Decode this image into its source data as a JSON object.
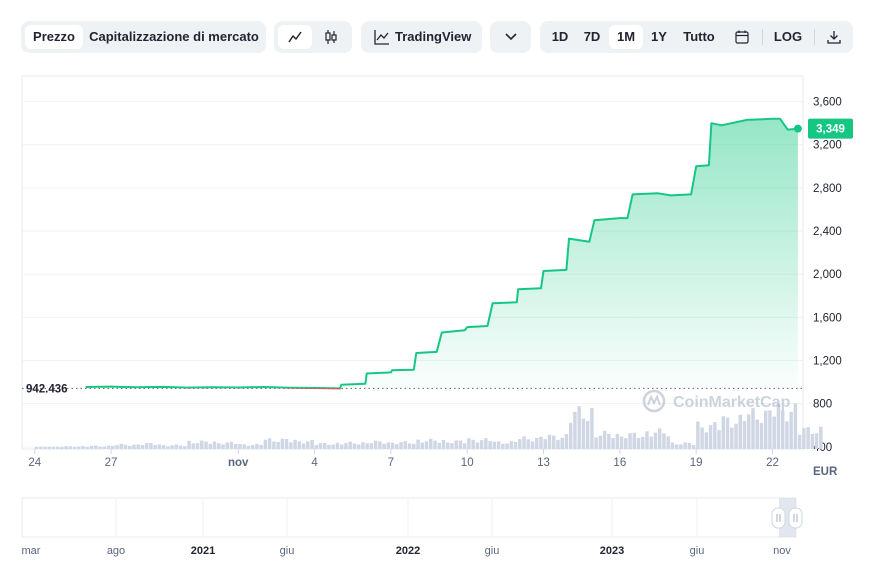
{
  "toolbar": {
    "chart_tabs": [
      {
        "label": "Prezzo",
        "active": true
      },
      {
        "label": "Capitalizzazione di mercato",
        "active": false
      }
    ],
    "chart_type_icons": [
      "line-chart-icon",
      "candlestick-icon"
    ],
    "tradingview_label": "TradingView",
    "dropdown_icon": "chevron-down-icon",
    "ranges": [
      {
        "label": "1D",
        "active": false
      },
      {
        "label": "7D",
        "active": false
      },
      {
        "label": "1M",
        "active": true
      },
      {
        "label": "1Y",
        "active": false
      },
      {
        "label": "Tutto",
        "active": false
      }
    ],
    "calendar_icon": "calendar-icon",
    "log_label": "LOG",
    "download_icon": "download-icon"
  },
  "chart_data": {
    "type": "area",
    "currency_label": "EUR",
    "current_price_label": "3,349",
    "reference_price_label": "942.436",
    "reference_price": 942.436,
    "watermark": "CoinMarketCap",
    "y_ticks": [
      400,
      800,
      1200,
      1600,
      2000,
      2400,
      2800,
      3200,
      3600
    ],
    "y_tick_labels": [
      "400",
      "800",
      "1,200",
      "1,600",
      "2,000",
      "2,400",
      "2,800",
      "3,200",
      "3,600"
    ],
    "ylim": [
      380,
      3800
    ],
    "x_ticks": [
      {
        "label": "24",
        "day": 0
      },
      {
        "label": "27",
        "day": 3
      },
      {
        "label": "nov",
        "day": 8
      },
      {
        "label": "4",
        "day": 11
      },
      {
        "label": "7",
        "day": 14
      },
      {
        "label": "10",
        "day": 17
      },
      {
        "label": "13",
        "day": 20
      },
      {
        "label": "16",
        "day": 23
      },
      {
        "label": "19",
        "day": 26
      },
      {
        "label": "22",
        "day": 29
      }
    ],
    "xlim": [
      -0.5,
      30.2
    ],
    "colors": {
      "up": "#16c784",
      "down": "#ea3943",
      "volume": "#cfd6e4"
    },
    "price_series": [
      {
        "day": 2.0,
        "price": 955
      },
      {
        "day": 3.0,
        "price": 958
      },
      {
        "day": 4.0,
        "price": 952
      },
      {
        "day": 5.0,
        "price": 956
      },
      {
        "day": 6.0,
        "price": 949
      },
      {
        "day": 7.0,
        "price": 953
      },
      {
        "day": 8.0,
        "price": 950
      },
      {
        "day": 9.0,
        "price": 955
      },
      {
        "day": 10.0,
        "price": 948
      },
      {
        "day": 11.0,
        "price": 945
      },
      {
        "day": 12.0,
        "price": 942
      },
      {
        "day": 12.05,
        "price": 975
      },
      {
        "day": 13.0,
        "price": 985
      },
      {
        "day": 13.05,
        "price": 1080
      },
      {
        "day": 14.0,
        "price": 1090
      },
      {
        "day": 14.05,
        "price": 1110
      },
      {
        "day": 14.9,
        "price": 1115
      },
      {
        "day": 15.0,
        "price": 1270
      },
      {
        "day": 15.8,
        "price": 1280
      },
      {
        "day": 16.0,
        "price": 1460
      },
      {
        "day": 16.9,
        "price": 1480
      },
      {
        "day": 17.0,
        "price": 1510
      },
      {
        "day": 17.8,
        "price": 1520
      },
      {
        "day": 18.0,
        "price": 1730
      },
      {
        "day": 18.95,
        "price": 1740
      },
      {
        "day": 19.0,
        "price": 1860
      },
      {
        "day": 19.9,
        "price": 1870
      },
      {
        "day": 20.0,
        "price": 2030
      },
      {
        "day": 20.9,
        "price": 2040
      },
      {
        "day": 21.0,
        "price": 2330
      },
      {
        "day": 21.8,
        "price": 2300
      },
      {
        "day": 22.0,
        "price": 2500
      },
      {
        "day": 23.0,
        "price": 2520
      },
      {
        "day": 23.3,
        "price": 2520
      },
      {
        "day": 23.5,
        "price": 2740
      },
      {
        "day": 24.5,
        "price": 2750
      },
      {
        "day": 25.0,
        "price": 2730
      },
      {
        "day": 25.8,
        "price": 2740
      },
      {
        "day": 26.0,
        "price": 3000
      },
      {
        "day": 26.5,
        "price": 3010
      },
      {
        "day": 26.6,
        "price": 3400
      },
      {
        "day": 27.0,
        "price": 3380
      },
      {
        "day": 28.0,
        "price": 3430
      },
      {
        "day": 29.0,
        "price": 3440
      },
      {
        "day": 29.3,
        "price": 3440
      },
      {
        "day": 29.6,
        "price": 3340
      },
      {
        "day": 30.0,
        "price": 3349
      }
    ],
    "volume_series": [
      {
        "day": 0,
        "volume": 20
      },
      {
        "day": 1,
        "volume": 25
      },
      {
        "day": 2,
        "volume": 30
      },
      {
        "day": 3,
        "volume": 45
      },
      {
        "day": 4,
        "volume": 55
      },
      {
        "day": 5,
        "volume": 40
      },
      {
        "day": 6,
        "volume": 75
      },
      {
        "day": 7,
        "volume": 65
      },
      {
        "day": 8,
        "volume": 45
      },
      {
        "day": 9,
        "volume": 95
      },
      {
        "day": 10,
        "volume": 80
      },
      {
        "day": 11,
        "volume": 55
      },
      {
        "day": 12,
        "volume": 65
      },
      {
        "day": 13,
        "volume": 75
      },
      {
        "day": 14,
        "volume": 70
      },
      {
        "day": 15,
        "volume": 90
      },
      {
        "day": 16,
        "volume": 80
      },
      {
        "day": 17,
        "volume": 95
      },
      {
        "day": 18,
        "volume": 70
      },
      {
        "day": 19,
        "volume": 110
      },
      {
        "day": 20,
        "volume": 130
      },
      {
        "day": 21,
        "volume": 380
      },
      {
        "day": 22,
        "volume": 160
      },
      {
        "day": 23,
        "volume": 150
      },
      {
        "day": 24,
        "volume": 180
      },
      {
        "day": 25,
        "volume": 60
      },
      {
        "day": 26,
        "volume": 240
      },
      {
        "day": 27,
        "volume": 300
      },
      {
        "day": 28,
        "volume": 360
      },
      {
        "day": 29,
        "volume": 400
      },
      {
        "day": 30,
        "volume": 200
      }
    ],
    "navigator": {
      "x_labels": [
        "mar",
        "ago",
        "2021",
        "giu",
        "2022",
        "giu",
        "2023",
        "giu",
        "nov"
      ],
      "bold_labels": [
        "2021",
        "2022",
        "2023"
      ]
    }
  }
}
